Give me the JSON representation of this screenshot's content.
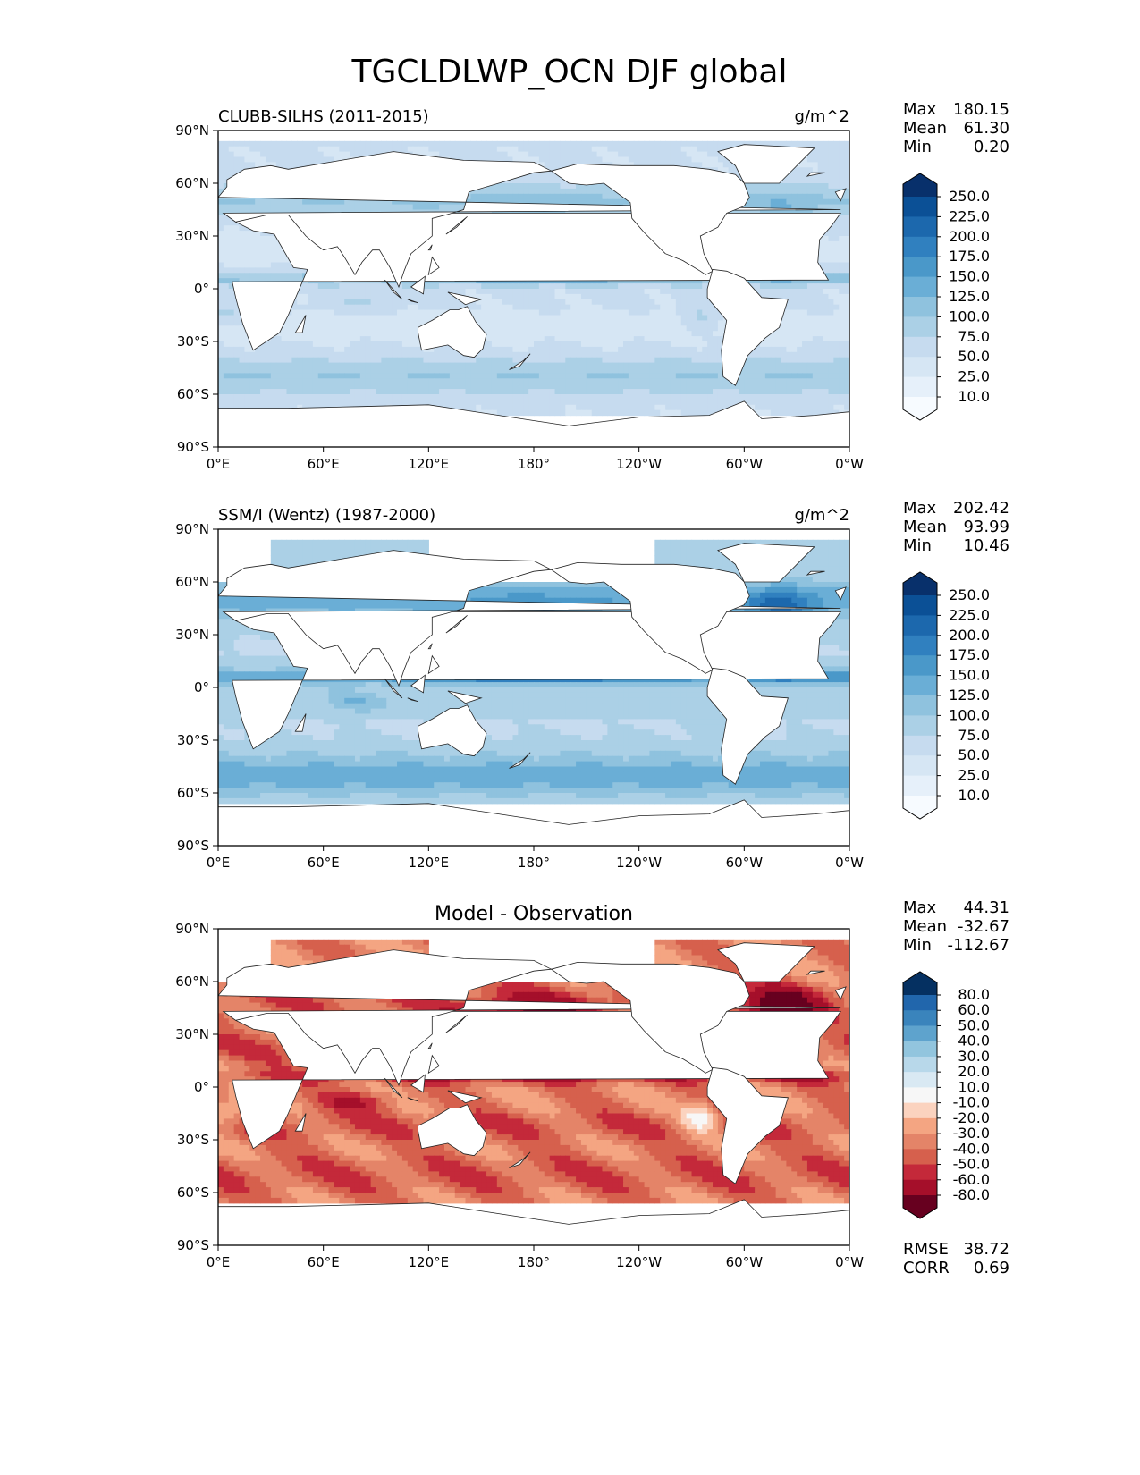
{
  "figure": {
    "title": "TGCLDLWP_OCN DJF global"
  },
  "chart_data": [
    {
      "type": "heatmap",
      "title": "CLUBB-SILHS (2011-2015)",
      "units": "g/m^2",
      "stats": [
        {
          "label": "Max",
          "value": "180.15"
        },
        {
          "label": "Mean",
          "value": "61.30"
        },
        {
          "label": "Min",
          "value": "0.20"
        }
      ],
      "x_ticks": [
        "0°E",
        "60°E",
        "120°E",
        "180°",
        "120°W",
        "60°W",
        "0°W"
      ],
      "y_ticks": [
        "90°N",
        "60°N",
        "30°N",
        "0°",
        "30°S",
        "60°S",
        "90°S"
      ],
      "xlim": [
        0,
        360
      ],
      "ylim": [
        -90,
        90
      ],
      "colorbar": {
        "levels": [
          "10.0",
          "25.0",
          "50.0",
          "75.0",
          "100.0",
          "125.0",
          "150.0",
          "175.0",
          "200.0",
          "225.0",
          "250.0"
        ],
        "colors": [
          "#f7fbff",
          "#e6f0fa",
          "#d6e6f4",
          "#c6dbef",
          "#abd0e6",
          "#8fc2de",
          "#6aaed6",
          "#4a98c9",
          "#3080bf",
          "#1c68ad",
          "#0b5096",
          "#08306b"
        ]
      }
    },
    {
      "type": "heatmap",
      "title": "SSM/I (Wentz) (1987-2000)",
      "units": "g/m^2",
      "stats": [
        {
          "label": "Max",
          "value": "202.42"
        },
        {
          "label": "Mean",
          "value": "93.99"
        },
        {
          "label": "Min",
          "value": "10.46"
        }
      ],
      "x_ticks": [
        "0°E",
        "60°E",
        "120°E",
        "180°",
        "120°W",
        "60°W",
        "0°W"
      ],
      "y_ticks": [
        "90°N",
        "60°N",
        "30°N",
        "0°",
        "30°S",
        "60°S",
        "90°S"
      ],
      "xlim": [
        0,
        360
      ],
      "ylim": [
        -90,
        90
      ],
      "colorbar": {
        "levels": [
          "10.0",
          "25.0",
          "50.0",
          "75.0",
          "100.0",
          "125.0",
          "150.0",
          "175.0",
          "200.0",
          "225.0",
          "250.0"
        ],
        "colors": [
          "#f7fbff",
          "#e6f0fa",
          "#d6e6f4",
          "#c6dbef",
          "#abd0e6",
          "#8fc2de",
          "#6aaed6",
          "#4a98c9",
          "#3080bf",
          "#1c68ad",
          "#0b5096",
          "#08306b"
        ]
      }
    },
    {
      "type": "heatmap",
      "title": "Model - Observation",
      "units": "",
      "stats": [
        {
          "label": "Max",
          "value": "44.31"
        },
        {
          "label": "Mean",
          "value": "-32.67"
        },
        {
          "label": "Min",
          "value": "-112.67"
        }
      ],
      "metrics": [
        {
          "label": "RMSE",
          "value": "38.72"
        },
        {
          "label": "CORR",
          "value": "0.69"
        }
      ],
      "x_ticks": [
        "0°E",
        "60°E",
        "120°E",
        "180°",
        "120°W",
        "60°W",
        "0°W"
      ],
      "y_ticks": [
        "90°N",
        "60°N",
        "30°N",
        "0°",
        "30°S",
        "60°S",
        "90°S"
      ],
      "xlim": [
        0,
        360
      ],
      "ylim": [
        -90,
        90
      ],
      "colorbar": {
        "levels": [
          "-80.0",
          "-60.0",
          "-50.0",
          "-40.0",
          "-30.0",
          "-20.0",
          "-10.0",
          "10.0",
          "20.0",
          "30.0",
          "40.0",
          "50.0",
          "60.0",
          "80.0"
        ],
        "colors": [
          "#67001f",
          "#a50f2a",
          "#c4293a",
          "#d6604d",
          "#e48468",
          "#f4a582",
          "#fbd3bf",
          "#f7f7f7",
          "#d9e9f3",
          "#b8d8ea",
          "#92c5de",
          "#5ea3cd",
          "#3a84bc",
          "#2166ac",
          "#053061"
        ]
      }
    }
  ]
}
